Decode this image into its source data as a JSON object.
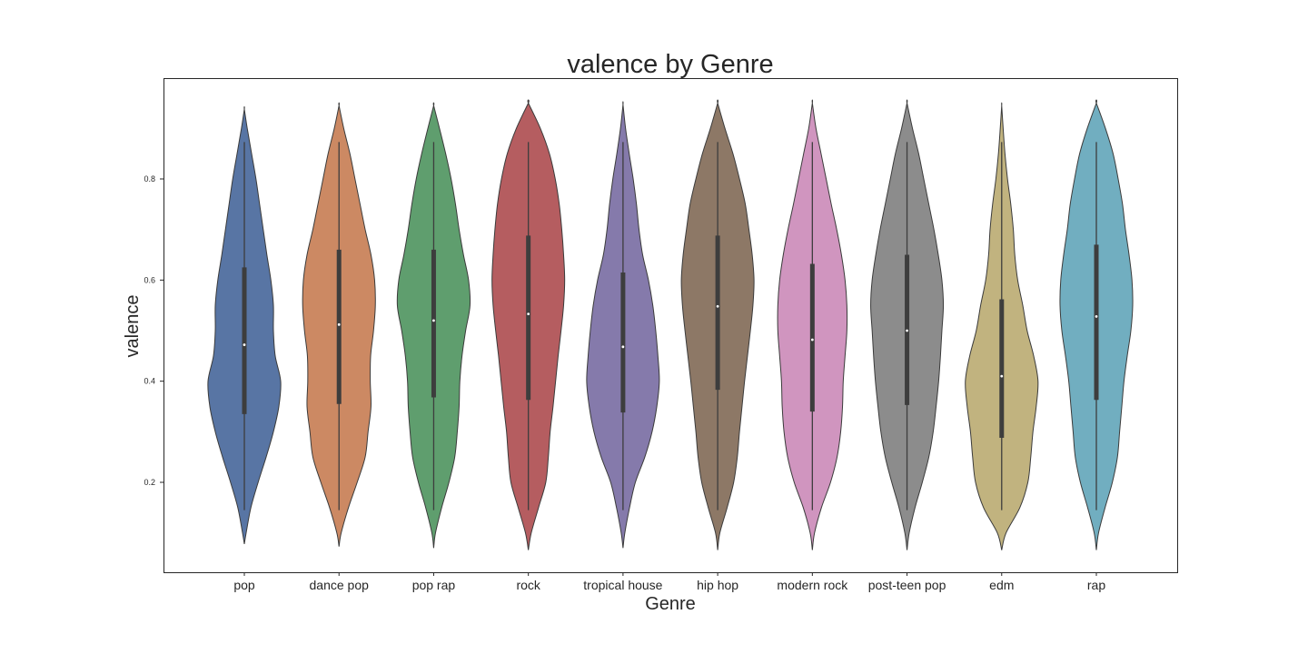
{
  "chart_data": {
    "type": "violin",
    "title": "valence by Genre",
    "xlabel": "Genre",
    "ylabel": "valence",
    "ylim": [
      0.02,
      1.0
    ],
    "y_ticks": [
      {
        "value": 0.2,
        "label": "0.2"
      },
      {
        "value": 0.4,
        "label": "0.4"
      },
      {
        "value": 0.6,
        "label": "0.6"
      },
      {
        "value": 0.8,
        "label": "0.8"
      }
    ],
    "grid": false,
    "categories": [
      "pop",
      "dance pop",
      "pop rap",
      "rock",
      "tropical house",
      "hip hop",
      "modern rock",
      "post-teen pop",
      "edm",
      "rap"
    ],
    "series": [
      {
        "category": "pop",
        "color": "#5875a4",
        "min": 0.145,
        "q1": 0.335,
        "median": 0.472,
        "q3": 0.625,
        "max": 0.873,
        "kde_lo": 0.078,
        "kde_hi": 0.938,
        "density": [
          [
            0.078,
            0
          ],
          [
            0.1,
            0.05
          ],
          [
            0.15,
            0.18
          ],
          [
            0.2,
            0.38
          ],
          [
            0.25,
            0.6
          ],
          [
            0.3,
            0.8
          ],
          [
            0.35,
            0.95
          ],
          [
            0.4,
            1.0
          ],
          [
            0.45,
            0.85
          ],
          [
            0.5,
            0.8
          ],
          [
            0.55,
            0.8
          ],
          [
            0.6,
            0.73
          ],
          [
            0.65,
            0.62
          ],
          [
            0.7,
            0.52
          ],
          [
            0.75,
            0.42
          ],
          [
            0.8,
            0.32
          ],
          [
            0.85,
            0.2
          ],
          [
            0.9,
            0.08
          ],
          [
            0.938,
            0
          ]
        ]
      },
      {
        "category": "dance pop",
        "color": "#cc8963",
        "min": 0.145,
        "q1": 0.355,
        "median": 0.512,
        "q3": 0.66,
        "max": 0.873,
        "kde_lo": 0.073,
        "kde_hi": 0.945,
        "density": [
          [
            0.073,
            0
          ],
          [
            0.1,
            0.06
          ],
          [
            0.15,
            0.26
          ],
          [
            0.2,
            0.5
          ],
          [
            0.25,
            0.72
          ],
          [
            0.3,
            0.8
          ],
          [
            0.35,
            0.88
          ],
          [
            0.4,
            0.86
          ],
          [
            0.45,
            0.87
          ],
          [
            0.5,
            0.95
          ],
          [
            0.55,
            1.0
          ],
          [
            0.6,
            0.98
          ],
          [
            0.65,
            0.88
          ],
          [
            0.7,
            0.72
          ],
          [
            0.75,
            0.58
          ],
          [
            0.8,
            0.44
          ],
          [
            0.85,
            0.3
          ],
          [
            0.9,
            0.13
          ],
          [
            0.945,
            0
          ]
        ]
      },
      {
        "category": "pop rap",
        "color": "#5f9e6e",
        "min": 0.145,
        "q1": 0.368,
        "median": 0.52,
        "q3": 0.66,
        "max": 0.873,
        "kde_lo": 0.07,
        "kde_hi": 0.945,
        "density": [
          [
            0.07,
            0
          ],
          [
            0.1,
            0.05
          ],
          [
            0.15,
            0.22
          ],
          [
            0.2,
            0.42
          ],
          [
            0.25,
            0.58
          ],
          [
            0.3,
            0.65
          ],
          [
            0.35,
            0.7
          ],
          [
            0.4,
            0.72
          ],
          [
            0.45,
            0.78
          ],
          [
            0.5,
            0.88
          ],
          [
            0.55,
            1.0
          ],
          [
            0.6,
            0.96
          ],
          [
            0.65,
            0.82
          ],
          [
            0.7,
            0.7
          ],
          [
            0.75,
            0.6
          ],
          [
            0.8,
            0.48
          ],
          [
            0.85,
            0.33
          ],
          [
            0.9,
            0.16
          ],
          [
            0.945,
            0
          ]
        ]
      },
      {
        "category": "rock",
        "color": "#b55d60",
        "min": 0.145,
        "q1": 0.363,
        "median": 0.533,
        "q3": 0.688,
        "max": 0.873,
        "kde_lo": 0.066,
        "kde_hi": 0.95,
        "density": [
          [
            0.066,
            0
          ],
          [
            0.1,
            0.08
          ],
          [
            0.15,
            0.28
          ],
          [
            0.2,
            0.48
          ],
          [
            0.25,
            0.55
          ],
          [
            0.3,
            0.6
          ],
          [
            0.35,
            0.68
          ],
          [
            0.4,
            0.75
          ],
          [
            0.45,
            0.82
          ],
          [
            0.5,
            0.9
          ],
          [
            0.55,
            0.97
          ],
          [
            0.6,
            1.0
          ],
          [
            0.65,
            0.97
          ],
          [
            0.7,
            0.92
          ],
          [
            0.75,
            0.85
          ],
          [
            0.8,
            0.74
          ],
          [
            0.85,
            0.58
          ],
          [
            0.9,
            0.33
          ],
          [
            0.95,
            0
          ]
        ]
      },
      {
        "category": "tropical house",
        "color": "#857aab",
        "min": 0.145,
        "q1": 0.338,
        "median": 0.468,
        "q3": 0.615,
        "max": 0.873,
        "kde_lo": 0.07,
        "kde_hi": 0.947,
        "density": [
          [
            0.07,
            0
          ],
          [
            0.1,
            0.05
          ],
          [
            0.15,
            0.18
          ],
          [
            0.2,
            0.34
          ],
          [
            0.25,
            0.6
          ],
          [
            0.3,
            0.8
          ],
          [
            0.35,
            0.93
          ],
          [
            0.4,
            1.0
          ],
          [
            0.45,
            0.96
          ],
          [
            0.5,
            0.9
          ],
          [
            0.55,
            0.82
          ],
          [
            0.6,
            0.7
          ],
          [
            0.65,
            0.54
          ],
          [
            0.7,
            0.44
          ],
          [
            0.75,
            0.37
          ],
          [
            0.8,
            0.28
          ],
          [
            0.85,
            0.17
          ],
          [
            0.9,
            0.07
          ],
          [
            0.947,
            0
          ]
        ]
      },
      {
        "category": "hip hop",
        "color": "#8d7866",
        "min": 0.145,
        "q1": 0.383,
        "median": 0.548,
        "q3": 0.688,
        "max": 0.873,
        "kde_lo": 0.066,
        "kde_hi": 0.95,
        "density": [
          [
            0.066,
            0
          ],
          [
            0.1,
            0.06
          ],
          [
            0.15,
            0.26
          ],
          [
            0.2,
            0.44
          ],
          [
            0.25,
            0.54
          ],
          [
            0.3,
            0.6
          ],
          [
            0.35,
            0.67
          ],
          [
            0.4,
            0.74
          ],
          [
            0.45,
            0.82
          ],
          [
            0.5,
            0.9
          ],
          [
            0.55,
            0.97
          ],
          [
            0.6,
            1.0
          ],
          [
            0.65,
            0.95
          ],
          [
            0.7,
            0.86
          ],
          [
            0.75,
            0.76
          ],
          [
            0.8,
            0.6
          ],
          [
            0.85,
            0.42
          ],
          [
            0.9,
            0.2
          ],
          [
            0.95,
            0
          ]
        ]
      },
      {
        "category": "modern rock",
        "color": "#d095bf",
        "min": 0.145,
        "q1": 0.34,
        "median": 0.482,
        "q3": 0.632,
        "max": 0.873,
        "kde_lo": 0.066,
        "kde_hi": 0.95,
        "density": [
          [
            0.066,
            0
          ],
          [
            0.1,
            0.06
          ],
          [
            0.15,
            0.25
          ],
          [
            0.2,
            0.5
          ],
          [
            0.25,
            0.68
          ],
          [
            0.3,
            0.78
          ],
          [
            0.35,
            0.83
          ],
          [
            0.4,
            0.85
          ],
          [
            0.45,
            0.9
          ],
          [
            0.5,
            0.95
          ],
          [
            0.55,
            0.95
          ],
          [
            0.6,
            0.9
          ],
          [
            0.65,
            0.8
          ],
          [
            0.7,
            0.67
          ],
          [
            0.75,
            0.52
          ],
          [
            0.8,
            0.38
          ],
          [
            0.85,
            0.24
          ],
          [
            0.9,
            0.1
          ],
          [
            0.95,
            0
          ]
        ]
      },
      {
        "category": "post-teen pop",
        "color": "#8c8c8c",
        "min": 0.145,
        "q1": 0.353,
        "median": 0.5,
        "q3": 0.65,
        "max": 0.873,
        "kde_lo": 0.066,
        "kde_hi": 0.95,
        "density": [
          [
            0.066,
            0
          ],
          [
            0.1,
            0.06
          ],
          [
            0.15,
            0.22
          ],
          [
            0.2,
            0.42
          ],
          [
            0.25,
            0.6
          ],
          [
            0.3,
            0.72
          ],
          [
            0.35,
            0.8
          ],
          [
            0.4,
            0.87
          ],
          [
            0.45,
            0.92
          ],
          [
            0.5,
            0.96
          ],
          [
            0.55,
            1.0
          ],
          [
            0.6,
            0.96
          ],
          [
            0.65,
            0.86
          ],
          [
            0.7,
            0.74
          ],
          [
            0.75,
            0.6
          ],
          [
            0.8,
            0.46
          ],
          [
            0.85,
            0.32
          ],
          [
            0.9,
            0.15
          ],
          [
            0.95,
            0
          ]
        ]
      },
      {
        "category": "edm",
        "color": "#c1b37f",
        "min": 0.145,
        "q1": 0.288,
        "median": 0.41,
        "q3": 0.562,
        "max": 0.873,
        "kde_lo": 0.066,
        "kde_hi": 0.945,
        "density": [
          [
            0.066,
            0
          ],
          [
            0.1,
            0.12
          ],
          [
            0.15,
            0.5
          ],
          [
            0.2,
            0.72
          ],
          [
            0.25,
            0.8
          ],
          [
            0.3,
            0.86
          ],
          [
            0.35,
            0.95
          ],
          [
            0.4,
            1.0
          ],
          [
            0.45,
            0.88
          ],
          [
            0.5,
            0.7
          ],
          [
            0.55,
            0.58
          ],
          [
            0.6,
            0.44
          ],
          [
            0.65,
            0.36
          ],
          [
            0.7,
            0.32
          ],
          [
            0.75,
            0.25
          ],
          [
            0.8,
            0.16
          ],
          [
            0.85,
            0.09
          ],
          [
            0.9,
            0.04
          ],
          [
            0.945,
            0
          ]
        ]
      },
      {
        "category": "rap",
        "color": "#71aec0",
        "min": 0.145,
        "q1": 0.363,
        "median": 0.528,
        "q3": 0.67,
        "max": 0.873,
        "kde_lo": 0.066,
        "kde_hi": 0.95,
        "density": [
          [
            0.066,
            0
          ],
          [
            0.1,
            0.06
          ],
          [
            0.15,
            0.24
          ],
          [
            0.2,
            0.44
          ],
          [
            0.25,
            0.58
          ],
          [
            0.3,
            0.64
          ],
          [
            0.35,
            0.7
          ],
          [
            0.4,
            0.76
          ],
          [
            0.45,
            0.85
          ],
          [
            0.5,
            0.95
          ],
          [
            0.55,
            1.0
          ],
          [
            0.6,
            0.98
          ],
          [
            0.65,
            0.9
          ],
          [
            0.7,
            0.8
          ],
          [
            0.75,
            0.72
          ],
          [
            0.8,
            0.6
          ],
          [
            0.85,
            0.46
          ],
          [
            0.9,
            0.25
          ],
          [
            0.95,
            0
          ]
        ]
      }
    ]
  }
}
